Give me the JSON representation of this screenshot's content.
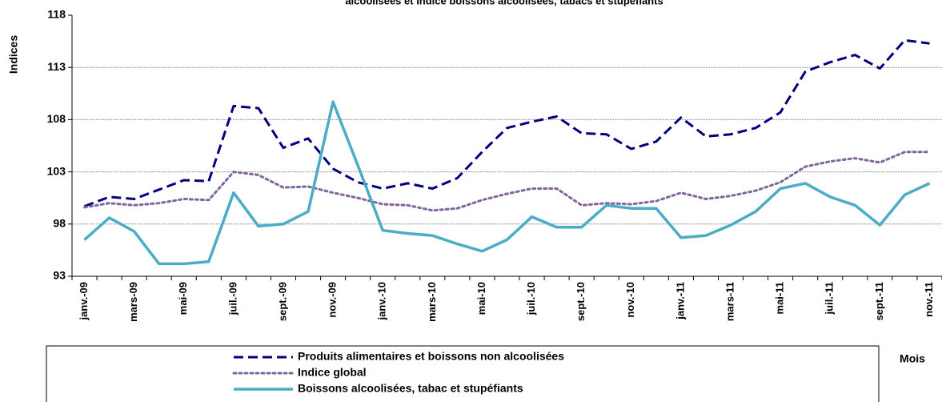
{
  "chart_data": {
    "type": "line",
    "title": "alcoolisées et indice boissons alcoolisées, tabacs et stupéfiants",
    "y_label": "Indices",
    "x_label": "Mois",
    "categories": [
      "janv.-09",
      null,
      "mars-09",
      null,
      "mai-09",
      null,
      "juil.-09",
      null,
      "sept.-09",
      null,
      "nov.-09",
      null,
      "janv.-10",
      null,
      "mars-10",
      null,
      "mai-10",
      null,
      "juil.-10",
      null,
      "sept.-10",
      null,
      "nov.-10",
      null,
      "janv.-11",
      null,
      "mars-11",
      null,
      "mai-11",
      null,
      "juil.-11",
      null,
      "sept.-11",
      null,
      "nov.-11"
    ],
    "ylim": [
      93,
      118
    ],
    "yticks": [
      93,
      98,
      103,
      108,
      113,
      118
    ],
    "grid": true,
    "series": [
      {
        "name": "Produits alimentaires et boissons non alcoolisées",
        "color": "#000080",
        "dash": "dashed",
        "values": [
          99.7,
          100.6,
          100.4,
          101.3,
          102.2,
          102.1,
          109.3,
          109.1,
          105.3,
          106.2,
          103.3,
          102.0,
          101.4,
          101.9,
          101.4,
          102.4,
          104.9,
          107.2,
          107.8,
          108.3,
          106.7,
          106.6,
          105.2,
          105.9,
          108.2,
          106.4,
          106.6,
          107.2,
          108.7,
          112.6,
          113.5,
          114.2,
          112.9,
          115.6,
          115.3
        ]
      },
      {
        "name": "Indice global",
        "color": "#8064a2",
        "dash": "dotted",
        "values": [
          99.6,
          100.0,
          99.8,
          100.0,
          100.4,
          100.3,
          103.0,
          102.7,
          101.5,
          101.6,
          101.0,
          100.5,
          99.9,
          99.8,
          99.3,
          99.5,
          100.3,
          100.9,
          101.4,
          101.4,
          99.8,
          100.0,
          99.9,
          100.2,
          101.0,
          100.4,
          100.7,
          101.2,
          102.0,
          103.5,
          104.0,
          104.3,
          103.9,
          104.9,
          104.9
        ]
      },
      {
        "name": "Boissons alcoolisées, tabac et stupéfiants",
        "color": "#4bacc6",
        "dash": "solid",
        "values": [
          96.5,
          98.6,
          97.3,
          94.2,
          94.2,
          94.4,
          101.0,
          97.8,
          98.0,
          99.2,
          109.7,
          103.6,
          97.4,
          97.1,
          96.9,
          96.1,
          95.4,
          96.5,
          98.7,
          97.7,
          97.7,
          99.8,
          99.5,
          99.5,
          96.7,
          96.9,
          97.9,
          99.2,
          101.4,
          101.9,
          100.6,
          99.8,
          97.9,
          100.8,
          101.9
        ]
      }
    ]
  }
}
